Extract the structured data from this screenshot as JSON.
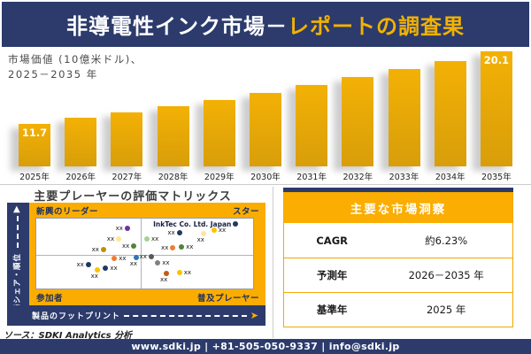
{
  "header": {
    "title_white": "非導電性インク市場－",
    "title_yellow": "レポートの調査果"
  },
  "chart": {
    "caption_line1": "市場価値 (10億米ドル)、",
    "caption_line2": "2025－2035 年"
  },
  "chart_data": [
    {
      "type": "bar",
      "title": "市場価値 (10億米ドル)、2025－2035 年",
      "ylabel": "市場価値 (10億米ドル)",
      "categories": [
        "2025年",
        "2026年",
        "2027年",
        "2028年",
        "2029年",
        "2030年",
        "2031年",
        "2032年",
        "2033年",
        "2034年",
        "2035年"
      ],
      "values": [
        11.7,
        12.4,
        13.0,
        13.8,
        14.5,
        15.3,
        16.2,
        17.1,
        18.0,
        19.0,
        20.1
      ],
      "bar_value_labels": [
        "11.7",
        "",
        "",
        "",
        "",
        "",
        "",
        "",
        "",
        "",
        "20.1"
      ],
      "labeled_points": {
        "2025年": 11.7,
        "2035年": 20.1
      },
      "bar_color": "#E3A60C",
      "baseline_value": 6.8,
      "axis_visible": false,
      "grid": false
    },
    {
      "type": "scatter",
      "title": "主要プレーヤーの評価マトリックス",
      "xlabel": "製品のフットプリント",
      "ylabel": "市場シェア・順位",
      "quadrants": [
        "新興のリーダー",
        "スター",
        "参加者",
        "普及プレーヤー"
      ],
      "highlighted_company": "InkTec Co. Ltd. Japan",
      "points": [
        {
          "x": 42,
          "y": 14,
          "color": "#7030A0",
          "label": "xx",
          "side": "left"
        },
        {
          "x": 38,
          "y": 29,
          "color": "#FFE699",
          "label": "xx",
          "side": "left"
        },
        {
          "x": 45,
          "y": 39,
          "color": "#548235",
          "label": "xx",
          "side": "left"
        },
        {
          "x": 31,
          "y": 44,
          "color": "#BF8F00",
          "label": "xx",
          "side": "left"
        },
        {
          "x": 36,
          "y": 57,
          "color": "#ED7D31",
          "label": "xx",
          "side": "right"
        },
        {
          "x": 46,
          "y": 56,
          "color": "#2E75B6",
          "label": "xx",
          "side": "below"
        },
        {
          "x": 24,
          "y": 66,
          "color": "#203864",
          "label": "xx",
          "side": "left"
        },
        {
          "x": 32,
          "y": 71,
          "color": "#203864",
          "label": "xx",
          "side": "right"
        },
        {
          "x": 28,
          "y": 74,
          "color": "#FFC000",
          "label": "xx",
          "side": "below"
        },
        {
          "x": 51,
          "y": 29,
          "color": "#A9D18E",
          "label": "xx",
          "side": "right"
        },
        {
          "x": 66,
          "y": 20,
          "color": "#203864",
          "label": "xx",
          "side": "left"
        },
        {
          "x": 77,
          "y": 22,
          "color": "#FFE699",
          "label": "xx",
          "side": "below"
        },
        {
          "x": 82,
          "y": 16,
          "color": "#FFC000",
          "label": "xx",
          "side": "right"
        },
        {
          "x": 92,
          "y": 7,
          "color": "#203864",
          "label": "InkTec Co. Ltd. Japan",
          "side": "left",
          "highlight": true
        },
        {
          "x": 63,
          "y": 42,
          "color": "#ED7D31",
          "label": "xx",
          "side": "left"
        },
        {
          "x": 67,
          "y": 40,
          "color": "#548235",
          "label": "xx",
          "side": "right"
        },
        {
          "x": 53,
          "y": 55,
          "color": "#595959",
          "label": "xx",
          "side": "left"
        },
        {
          "x": 56,
          "y": 63,
          "color": "#808080",
          "label": "xx",
          "side": "right"
        },
        {
          "x": 60,
          "y": 78,
          "color": "#C55A11",
          "label": "xx",
          "side": "below"
        },
        {
          "x": 66,
          "y": 77,
          "color": "#FFC000",
          "label": "xx",
          "side": "right"
        }
      ]
    }
  ],
  "matrix": {
    "title": "主要プレーヤーの評価マトリックス",
    "quadrants": {
      "top_left": "新興のリーダー",
      "top_right": "スター",
      "bottom_left": "参加者",
      "bottom_right": "普及プレーヤー"
    },
    "y_axis_label": "市場シェア・順位",
    "x_axis_label": "製品のフットプリント"
  },
  "insights": {
    "title": "主要な市場洞察",
    "rows": [
      {
        "label": "CAGR",
        "value": "約6.23%"
      },
      {
        "label": "予測年",
        "value": "2026－2035 年"
      },
      {
        "label": "基準年",
        "value": "2025 年"
      }
    ]
  },
  "source": "ソース：SDKI Analytics 分析",
  "footer": "www.sdki.jp | +81-505-050-9337 | info@sdki.jp",
  "colors": {
    "navy": "#2C3B6C",
    "gold_band": "#FAAD00",
    "bar_gold": "#E3A60C",
    "title_yellow": "#F2B200"
  }
}
